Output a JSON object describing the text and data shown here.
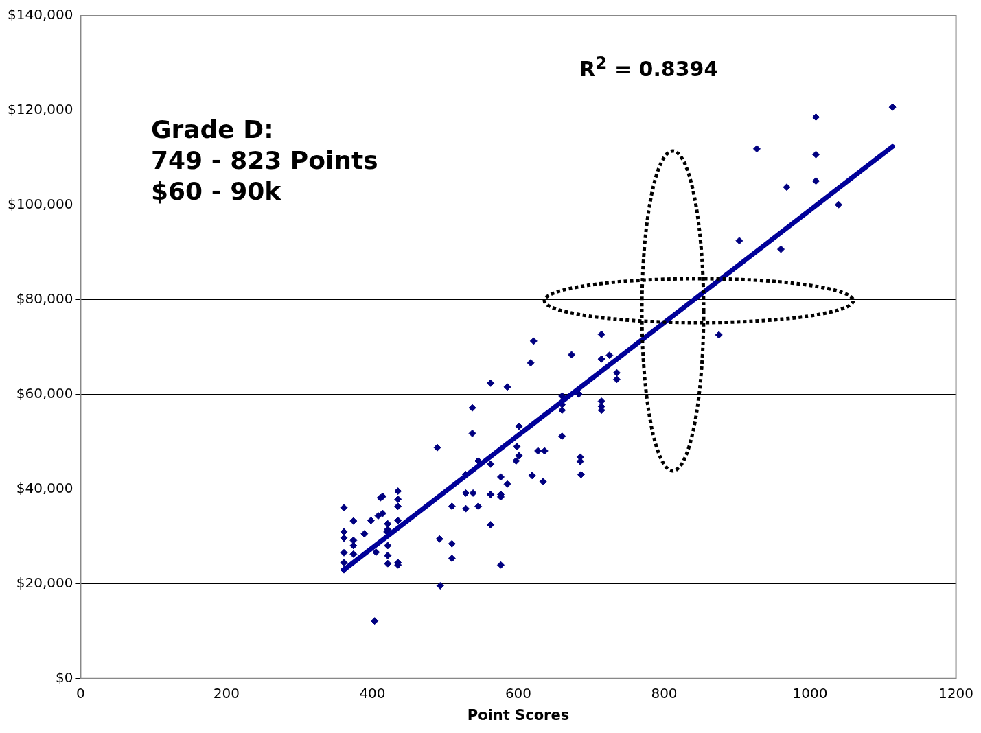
{
  "chart_data": {
    "type": "scatter",
    "xlabel": "Point Scores",
    "xlim": [
      0,
      1200
    ],
    "xticks": [
      0,
      200,
      400,
      600,
      800,
      1000,
      1200
    ],
    "ylim": [
      0,
      140000
    ],
    "yticks": [
      {
        "value": 0,
        "label": "$0"
      },
      {
        "value": 20000,
        "label": "$20,000"
      },
      {
        "value": 40000,
        "label": "$40,000"
      },
      {
        "value": 60000,
        "label": "$60,000"
      },
      {
        "value": 80000,
        "label": "$80,000"
      },
      {
        "value": 100000,
        "label": "$100,000"
      },
      {
        "value": 120000,
        "label": "$120,000"
      },
      {
        "value": 140000,
        "label": "$140,000"
      }
    ],
    "grid": "y",
    "legend": false,
    "annotations": [
      "R$^{2}$ = 0.8394",
      "Grade D:\n749 - 823 Points\n$60 - 90k"
    ],
    "series": [
      {
        "type": "scatter",
        "color": "#000080",
        "marker": "diamond",
        "x": [
          361,
          361,
          361,
          361,
          361,
          361,
          374,
          374,
          374,
          374,
          389,
          398,
          403,
          405,
          408,
          411,
          414,
          414,
          420,
          421,
          421,
          421,
          421,
          421,
          435,
          435,
          435,
          435,
          435,
          435,
          489,
          492,
          493,
          509,
          509,
          509,
          528,
          528,
          528,
          537,
          537,
          538,
          545,
          545,
          562,
          562,
          562,
          562,
          576,
          576,
          576,
          576,
          585,
          585,
          597,
          598,
          601,
          601,
          617,
          619,
          621,
          627,
          634,
          636,
          660,
          660,
          660,
          660,
          673,
          683,
          685,
          685,
          686,
          714,
          714,
          714,
          714,
          714,
          725,
          735,
          735,
          875,
          903,
          927,
          960,
          968,
          1008,
          1008,
          1008,
          1039,
          1113
        ],
        "values": [
          36100,
          31000,
          29700,
          26600,
          24500,
          23000,
          33300,
          29200,
          28100,
          26300,
          30600,
          33400,
          12200,
          26700,
          34400,
          38200,
          34900,
          38500,
          31000,
          32700,
          31500,
          28100,
          26000,
          24300,
          39600,
          37900,
          36400,
          33400,
          24500,
          24000,
          48800,
          29500,
          19600,
          36400,
          28500,
          25400,
          43100,
          39200,
          35900,
          57200,
          51800,
          39200,
          36400,
          46000,
          62400,
          45300,
          38900,
          32500,
          42600,
          38900,
          38400,
          24000,
          61600,
          41100,
          46000,
          49000,
          47100,
          53300,
          66700,
          42900,
          71300,
          48100,
          41600,
          48100,
          59700,
          57900,
          56700,
          51200,
          68400,
          60100,
          46800,
          45900,
          43100,
          72700,
          67500,
          58600,
          57500,
          56700,
          68300,
          64600,
          63200,
          72600,
          92500,
          111900,
          90700,
          103800,
          118600,
          110700,
          105100,
          100100,
          120700
        ]
      },
      {
        "type": "line",
        "color": "#000099",
        "marker": "none",
        "x": [
          361,
          1113
        ],
        "values": [
          23000,
          112400
        ]
      }
    ]
  }
}
